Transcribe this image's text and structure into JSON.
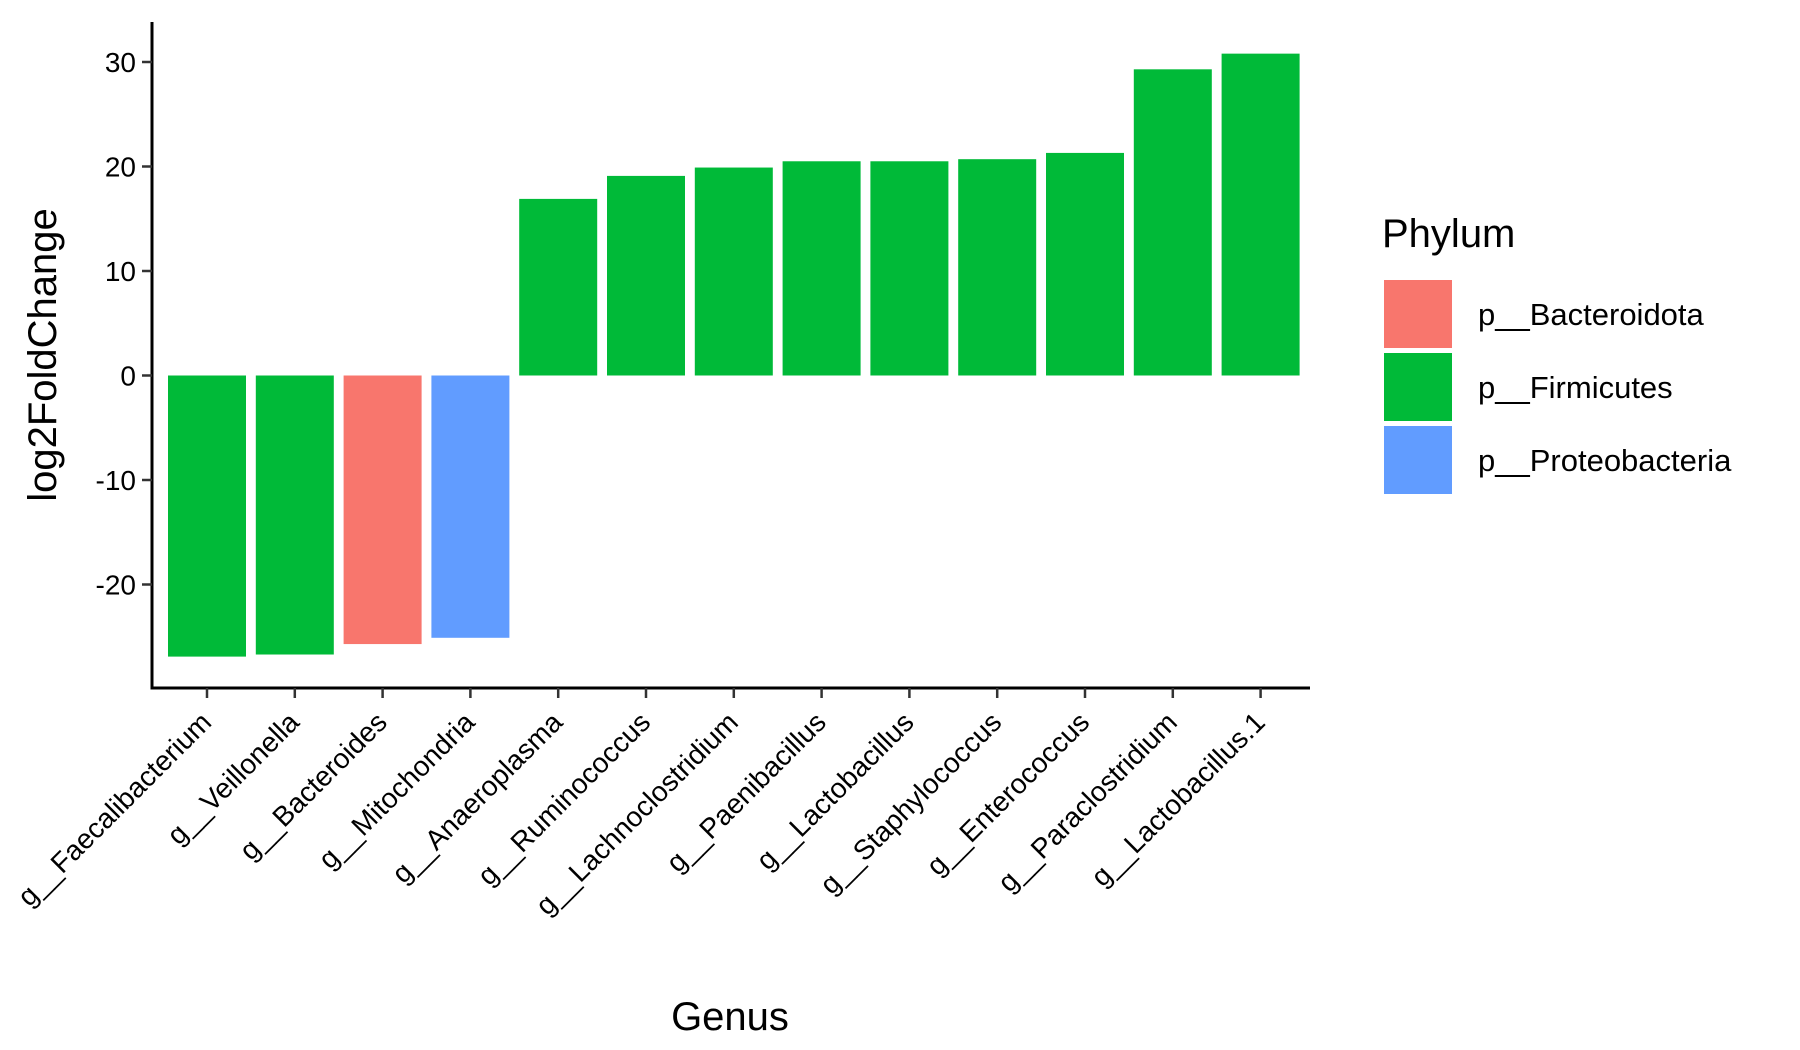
{
  "chart_data": {
    "type": "bar",
    "title": "",
    "xlabel": "Genus",
    "ylabel": "log2FoldChange",
    "ylim": [
      -30,
      32
    ],
    "yticks": [
      -20,
      -10,
      0,
      10,
      20,
      30
    ],
    "ytick_labels": [
      "-20",
      "-10",
      "0",
      "10",
      "20",
      "30"
    ],
    "grid": false,
    "legend_position": "right",
    "legend_title": "Phylum",
    "categories": [
      "g__Faecalibacterium",
      "g__Veillonella",
      "g__Bacteroides",
      "g__Mitochondria",
      "g__Anaeroplasma",
      "g__Ruminococcus",
      "g__Lachnoclostridium",
      "g__Paenibacillus",
      "g__Lactobacillus",
      "g__Staphylococcus",
      "g__Enterococcus",
      "g__Paraclostridium",
      "g__Lactobacillus.1"
    ],
    "values": [
      -26.9,
      -26.7,
      -25.7,
      -25.1,
      16.9,
      19.1,
      19.9,
      20.5,
      20.5,
      20.7,
      21.3,
      29.3,
      30.8
    ],
    "phylum": [
      "p__Firmicutes",
      "p__Firmicutes",
      "p__Bacteroidota",
      "p__Proteobacteria",
      "p__Firmicutes",
      "p__Firmicutes",
      "p__Firmicutes",
      "p__Firmicutes",
      "p__Firmicutes",
      "p__Firmicutes",
      "p__Firmicutes",
      "p__Firmicutes",
      "p__Firmicutes"
    ],
    "legend": [
      {
        "name": "p__Bacteroidota",
        "color": "#F8766D"
      },
      {
        "name": "p__Firmicutes",
        "color": "#00BA38"
      },
      {
        "name": "p__Proteobacteria",
        "color": "#619CFF"
      }
    ]
  }
}
